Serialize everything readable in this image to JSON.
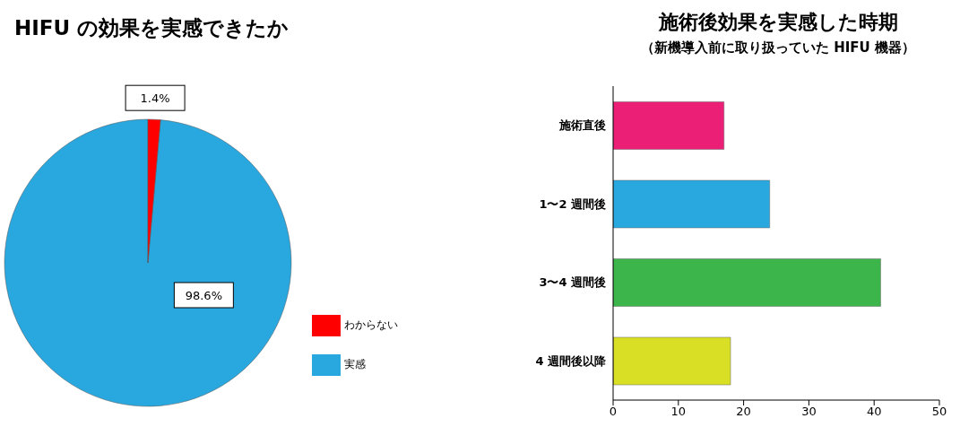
{
  "chart_data": [
    {
      "type": "pie",
      "title": "HIFU の効果を実感できたか",
      "categories": [
        "実感",
        "わからない"
      ],
      "values": [
        98.6,
        1.4
      ],
      "colors": [
        "#29a8e0",
        "#ff0000"
      ],
      "value_labels": [
        "98.6%",
        "1.4%"
      ],
      "legend": "right"
    },
    {
      "type": "bar",
      "orientation": "horizontal",
      "title": "施術後効果を実感した時期",
      "subtitle": "（新機導入前に取り扱っていた HIFU 機器）",
      "categories": [
        "施術直後",
        "1〜2 週間後",
        "3〜4 週間後",
        "4 週間後以降"
      ],
      "values": [
        17,
        24,
        41,
        18
      ],
      "colors": [
        "#ec1f77",
        "#29a8e0",
        "#3cb54a",
        "#d9df24"
      ],
      "xlim": [
        0,
        50
      ],
      "xticks": [
        0,
        10,
        20,
        30,
        40,
        50
      ],
      "grid": false
    }
  ]
}
